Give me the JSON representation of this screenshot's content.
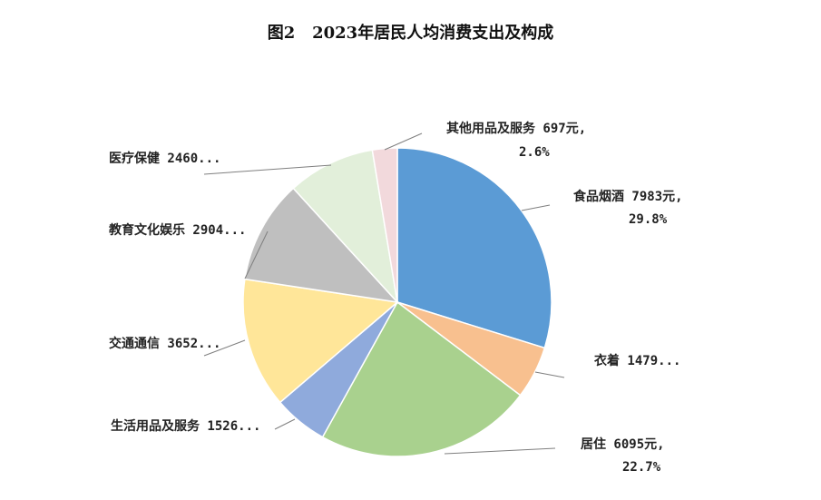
{
  "chart_data": {
    "type": "pie",
    "title_prefix": "图2",
    "title": "2023年居民人均消费支出及构成",
    "slices": [
      {
        "name": "食品烟酒",
        "value": 7983,
        "unit": "元",
        "percent": "29.8%",
        "label_text": "食品烟酒 7983元,",
        "label_pct": "29.8%",
        "color": "#5B9BD5"
      },
      {
        "name": "衣着",
        "value": 1479,
        "unit": "元",
        "label_text": "衣着 1479...",
        "label_pct": "",
        "color": "#F8C08F"
      },
      {
        "name": "居住",
        "value": 6095,
        "unit": "元",
        "percent": "22.7%",
        "label_text": "居住 6095元,",
        "label_pct": "22.7%",
        "color": "#A9D18E"
      },
      {
        "name": "生活用品及服务",
        "value": 1526,
        "unit": "元",
        "label_text": "生活用品及服务 1526...",
        "label_pct": "",
        "color": "#8FAADC"
      },
      {
        "name": "交通通信",
        "value": 3652,
        "unit": "元",
        "label_text": "交通通信 3652...",
        "label_pct": "",
        "color": "#FFE699"
      },
      {
        "name": "教育文化娱乐",
        "value": 2904,
        "unit": "元",
        "label_text": "教育文化娱乐 2904...",
        "label_pct": "",
        "color": "#BFBFBF"
      },
      {
        "name": "医疗保健",
        "value": 2460,
        "unit": "元",
        "label_text": "医疗保健 2460...",
        "label_pct": "",
        "color": "#E2EFDA"
      },
      {
        "name": "其他用品及服务",
        "value": 697,
        "unit": "元",
        "percent": "2.6%",
        "label_text": "其他用品及服务 697元,",
        "label_pct": "2.6%",
        "color": "#F2D9DC"
      }
    ]
  }
}
